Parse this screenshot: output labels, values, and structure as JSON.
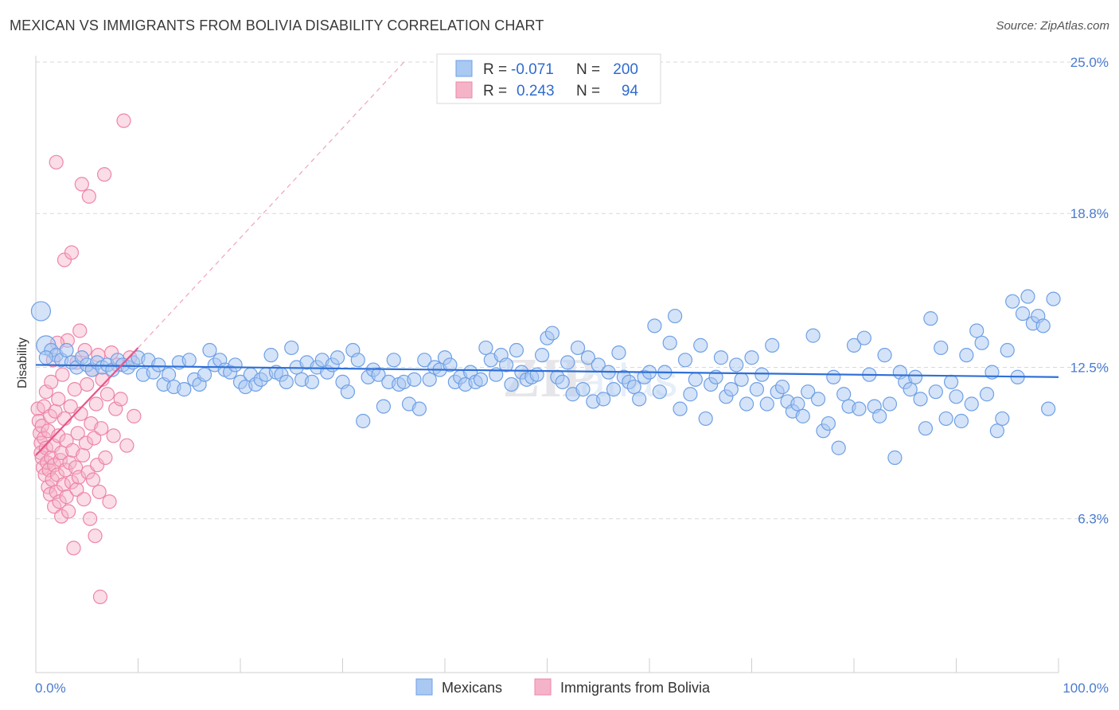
{
  "header": {
    "title": "MEXICAN VS IMMIGRANTS FROM BOLIVIA DISABILITY CORRELATION CHART",
    "source": "Source: ZipAtlas.com"
  },
  "colors": {
    "blue_fill": "#a9c8f2",
    "blue_stroke": "#6fa0e6",
    "blue_line": "#2f6fd6",
    "pink_fill": "#f5b3c8",
    "pink_stroke": "#ee85a8",
    "pink_line": "#e8558a",
    "grid": "#d9d9d9",
    "axis_label": "#4a7bd0"
  },
  "legend": {
    "rows": [
      {
        "r_label": "R =",
        "r_value": "-0.071",
        "n_label": "N =",
        "n_value": "200",
        "series": "blue"
      },
      {
        "r_label": "R =",
        "r_value": "0.243",
        "n_label": "N =",
        "n_value": "94",
        "series": "pink"
      }
    ]
  },
  "chart_data": {
    "type": "scatter",
    "title": "MEXICAN VS IMMIGRANTS FROM BOLIVIA DISABILITY CORRELATION CHART",
    "xlabel": "",
    "ylabel": "Disability",
    "xlim": [
      0,
      100
    ],
    "ylim": [
      0,
      25
    ],
    "y_ticks": [
      6.3,
      12.5,
      18.8,
      25.0
    ],
    "y_tick_labels": [
      "6.3%",
      "12.5%",
      "18.8%",
      "25.0%"
    ],
    "x_tick_labels": [
      "0.0%",
      "100.0%"
    ],
    "grid": true,
    "legend_position": "top-center",
    "bottom_legend": [
      "Mexicans",
      "Immigrants from Bolivia"
    ],
    "series": [
      {
        "name": "Mexicans",
        "color": "blue",
        "r": -0.071,
        "n": 200,
        "trend": {
          "x": [
            0,
            100
          ],
          "y": [
            12.6,
            12.1
          ]
        },
        "points": [
          [
            0.5,
            14.8
          ],
          [
            1.0,
            13.4
          ],
          [
            1.5,
            13.2
          ],
          [
            2.0,
            13.0
          ],
          [
            2.5,
            12.8
          ],
          [
            3.0,
            13.2
          ],
          [
            3.5,
            12.7
          ],
          [
            4.0,
            12.5
          ],
          [
            4.5,
            12.9
          ],
          [
            5.0,
            12.6
          ],
          [
            5.5,
            12.4
          ],
          [
            6.0,
            12.7
          ],
          [
            6.5,
            12.5
          ],
          [
            7.0,
            12.6
          ],
          [
            7.5,
            12.4
          ],
          [
            8.0,
            12.8
          ],
          [
            8.5,
            12.6
          ],
          [
            9.0,
            12.5
          ],
          [
            9.5,
            12.7
          ],
          [
            10.0,
            12.9
          ],
          [
            10.5,
            12.2
          ],
          [
            11.0,
            12.8
          ],
          [
            11.5,
            12.3
          ],
          [
            12.0,
            12.6
          ],
          [
            12.5,
            11.8
          ],
          [
            13.0,
            12.2
          ],
          [
            13.5,
            11.7
          ],
          [
            14.0,
            12.7
          ],
          [
            14.5,
            11.6
          ],
          [
            15.0,
            12.8
          ],
          [
            15.5,
            12.0
          ],
          [
            16.0,
            11.8
          ],
          [
            16.5,
            12.2
          ],
          [
            17.0,
            13.2
          ],
          [
            17.5,
            12.6
          ],
          [
            18.0,
            12.8
          ],
          [
            18.5,
            12.4
          ],
          [
            19.0,
            12.3
          ],
          [
            19.5,
            12.6
          ],
          [
            20.0,
            11.9
          ],
          [
            20.5,
            11.7
          ],
          [
            21.0,
            12.2
          ],
          [
            21.5,
            11.8
          ],
          [
            22.0,
            12.0
          ],
          [
            22.5,
            12.2
          ],
          [
            23.0,
            13.0
          ],
          [
            23.5,
            12.3
          ],
          [
            24.0,
            12.2
          ],
          [
            24.5,
            11.9
          ],
          [
            25.0,
            13.3
          ],
          [
            25.5,
            12.5
          ],
          [
            26.0,
            12.0
          ],
          [
            26.5,
            12.7
          ],
          [
            27.0,
            11.9
          ],
          [
            27.5,
            12.5
          ],
          [
            28.0,
            12.8
          ],
          [
            28.5,
            12.3
          ],
          [
            29.0,
            12.6
          ],
          [
            29.5,
            12.9
          ],
          [
            30.0,
            11.9
          ],
          [
            30.5,
            11.5
          ],
          [
            31.0,
            13.2
          ],
          [
            31.5,
            12.8
          ],
          [
            32.0,
            10.3
          ],
          [
            32.5,
            12.1
          ],
          [
            33.0,
            12.4
          ],
          [
            33.5,
            12.2
          ],
          [
            34.0,
            10.9
          ],
          [
            34.5,
            11.9
          ],
          [
            35.0,
            12.8
          ],
          [
            35.5,
            11.8
          ],
          [
            36.0,
            11.9
          ],
          [
            36.5,
            11.0
          ],
          [
            37.0,
            12.0
          ],
          [
            37.5,
            10.8
          ],
          [
            38.0,
            12.8
          ],
          [
            38.5,
            12.0
          ],
          [
            39.0,
            12.5
          ],
          [
            39.5,
            12.4
          ],
          [
            40.0,
            12.9
          ],
          [
            40.5,
            12.6
          ],
          [
            41.0,
            11.9
          ],
          [
            41.5,
            12.1
          ],
          [
            42.0,
            11.8
          ],
          [
            42.5,
            12.3
          ],
          [
            43.0,
            11.9
          ],
          [
            43.5,
            12.0
          ],
          [
            44.0,
            13.3
          ],
          [
            44.5,
            12.8
          ],
          [
            45.0,
            12.2
          ],
          [
            45.5,
            13.0
          ],
          [
            46.0,
            12.6
          ],
          [
            46.5,
            11.8
          ],
          [
            47.0,
            13.2
          ],
          [
            47.5,
            12.3
          ],
          [
            48.0,
            12.0
          ],
          [
            48.5,
            12.1
          ],
          [
            49.0,
            12.2
          ],
          [
            49.5,
            13.0
          ],
          [
            50.0,
            13.7
          ],
          [
            50.5,
            13.9
          ],
          [
            51.0,
            12.1
          ],
          [
            51.5,
            11.9
          ],
          [
            52.0,
            12.7
          ],
          [
            52.5,
            11.4
          ],
          [
            53.0,
            13.3
          ],
          [
            53.5,
            11.6
          ],
          [
            54.0,
            12.9
          ],
          [
            54.5,
            11.1
          ],
          [
            55.0,
            12.6
          ],
          [
            55.5,
            11.2
          ],
          [
            56.0,
            12.3
          ],
          [
            56.5,
            11.6
          ],
          [
            57.0,
            13.1
          ],
          [
            57.5,
            12.1
          ],
          [
            58.0,
            11.9
          ],
          [
            58.5,
            11.7
          ],
          [
            59.0,
            11.2
          ],
          [
            59.5,
            12.1
          ],
          [
            60.0,
            12.3
          ],
          [
            60.5,
            14.2
          ],
          [
            61.0,
            11.5
          ],
          [
            61.5,
            12.3
          ],
          [
            62.0,
            13.5
          ],
          [
            62.5,
            14.6
          ],
          [
            63.0,
            10.8
          ],
          [
            63.5,
            12.8
          ],
          [
            64.0,
            11.4
          ],
          [
            64.5,
            12.0
          ],
          [
            65.0,
            13.4
          ],
          [
            65.5,
            10.4
          ],
          [
            66.0,
            11.8
          ],
          [
            66.5,
            12.1
          ],
          [
            67.0,
            12.9
          ],
          [
            67.5,
            11.3
          ],
          [
            68.0,
            11.6
          ],
          [
            68.5,
            12.6
          ],
          [
            69.0,
            12.0
          ],
          [
            69.5,
            11.0
          ],
          [
            70.0,
            12.9
          ],
          [
            70.5,
            11.6
          ],
          [
            71.0,
            12.2
          ],
          [
            71.5,
            11.0
          ],
          [
            72.0,
            13.4
          ],
          [
            72.5,
            11.5
          ],
          [
            73.0,
            11.7
          ],
          [
            73.5,
            11.1
          ],
          [
            74.0,
            10.7
          ],
          [
            74.5,
            11.0
          ],
          [
            75.0,
            10.5
          ],
          [
            75.5,
            11.5
          ],
          [
            76.0,
            13.8
          ],
          [
            76.5,
            11.2
          ],
          [
            77.0,
            9.9
          ],
          [
            77.5,
            10.2
          ],
          [
            78.0,
            12.1
          ],
          [
            78.5,
            9.2
          ],
          [
            79.0,
            11.4
          ],
          [
            79.5,
            10.9
          ],
          [
            80.0,
            13.4
          ],
          [
            80.5,
            10.8
          ],
          [
            81.0,
            13.7
          ],
          [
            81.5,
            12.2
          ],
          [
            82.0,
            10.9
          ],
          [
            82.5,
            10.5
          ],
          [
            83.0,
            13.0
          ],
          [
            83.5,
            11.0
          ],
          [
            84.0,
            8.8
          ],
          [
            84.5,
            12.3
          ],
          [
            85.0,
            11.9
          ],
          [
            85.5,
            11.6
          ],
          [
            86.0,
            12.1
          ],
          [
            86.5,
            11.2
          ],
          [
            87.0,
            10.0
          ],
          [
            87.5,
            14.5
          ],
          [
            88.0,
            11.5
          ],
          [
            88.5,
            13.3
          ],
          [
            89.0,
            10.4
          ],
          [
            89.5,
            11.9
          ],
          [
            90.0,
            11.3
          ],
          [
            90.5,
            10.3
          ],
          [
            91.0,
            13.0
          ],
          [
            91.5,
            11.0
          ],
          [
            92.0,
            14.0
          ],
          [
            92.5,
            13.5
          ],
          [
            93.0,
            11.4
          ],
          [
            93.5,
            12.3
          ],
          [
            94.0,
            9.9
          ],
          [
            94.5,
            10.4
          ],
          [
            95.0,
            13.2
          ],
          [
            95.5,
            15.2
          ],
          [
            96.0,
            12.1
          ],
          [
            96.5,
            14.7
          ],
          [
            97.0,
            15.4
          ],
          [
            97.5,
            14.3
          ],
          [
            98.0,
            14.6
          ],
          [
            98.5,
            14.2
          ],
          [
            99.0,
            10.8
          ],
          [
            99.5,
            15.3
          ],
          [
            1.0,
            12.9
          ]
        ]
      },
      {
        "name": "Immigrants from Bolivia",
        "color": "pink",
        "r": 0.243,
        "n": 94,
        "trend": {
          "x": [
            0,
            10
          ],
          "y": [
            8.9,
            13.3
          ]
        },
        "trend_extended": {
          "x": [
            10,
            36
          ],
          "y": [
            13.3,
            25.0
          ]
        },
        "points": [
          [
            0.2,
            10.8
          ],
          [
            0.3,
            10.3
          ],
          [
            0.4,
            9.8
          ],
          [
            0.5,
            9.4
          ],
          [
            0.5,
            9.0
          ],
          [
            0.6,
            8.8
          ],
          [
            0.6,
            10.1
          ],
          [
            0.7,
            8.4
          ],
          [
            0.8,
            9.6
          ],
          [
            0.8,
            10.9
          ],
          [
            0.9,
            8.1
          ],
          [
            1.0,
            9.2
          ],
          [
            1.0,
            11.5
          ],
          [
            1.1,
            8.6
          ],
          [
            1.2,
            7.6
          ],
          [
            1.2,
            9.9
          ],
          [
            1.3,
            8.3
          ],
          [
            1.4,
            7.3
          ],
          [
            1.4,
            10.5
          ],
          [
            1.5,
            8.8
          ],
          [
            1.5,
            11.9
          ],
          [
            1.6,
            7.9
          ],
          [
            1.7,
            9.3
          ],
          [
            1.8,
            6.8
          ],
          [
            1.8,
            8.5
          ],
          [
            1.9,
            10.7
          ],
          [
            2.0,
            7.4
          ],
          [
            2.0,
            20.9
          ],
          [
            2.1,
            8.1
          ],
          [
            2.2,
            9.7
          ],
          [
            2.2,
            11.2
          ],
          [
            2.3,
            7.0
          ],
          [
            2.4,
            8.7
          ],
          [
            2.5,
            6.4
          ],
          [
            2.5,
            9.0
          ],
          [
            2.6,
            12.2
          ],
          [
            2.7,
            7.7
          ],
          [
            2.8,
            10.4
          ],
          [
            2.8,
            16.9
          ],
          [
            2.9,
            8.3
          ],
          [
            3.0,
            7.2
          ],
          [
            3.0,
            9.5
          ],
          [
            3.1,
            13.6
          ],
          [
            3.2,
            6.6
          ],
          [
            3.3,
            8.6
          ],
          [
            3.4,
            10.9
          ],
          [
            3.5,
            7.8
          ],
          [
            3.5,
            17.2
          ],
          [
            3.6,
            9.1
          ],
          [
            3.7,
            5.1
          ],
          [
            3.8,
            11.6
          ],
          [
            3.9,
            8.4
          ],
          [
            4.0,
            12.7
          ],
          [
            4.0,
            7.5
          ],
          [
            4.1,
            9.8
          ],
          [
            4.2,
            8.0
          ],
          [
            4.3,
            14.0
          ],
          [
            4.4,
            10.6
          ],
          [
            4.5,
            20.0
          ],
          [
            4.6,
            8.9
          ],
          [
            4.7,
            7.1
          ],
          [
            4.8,
            13.2
          ],
          [
            4.9,
            9.4
          ],
          [
            5.0,
            11.8
          ],
          [
            5.1,
            8.2
          ],
          [
            5.2,
            19.5
          ],
          [
            5.3,
            6.3
          ],
          [
            5.4,
            10.2
          ],
          [
            5.5,
            12.4
          ],
          [
            5.6,
            7.9
          ],
          [
            5.7,
            9.6
          ],
          [
            5.8,
            5.6
          ],
          [
            5.9,
            11.0
          ],
          [
            6.0,
            8.5
          ],
          [
            6.1,
            13.0
          ],
          [
            6.2,
            7.4
          ],
          [
            6.3,
            3.1
          ],
          [
            6.4,
            10.0
          ],
          [
            6.5,
            12.0
          ],
          [
            6.7,
            20.4
          ],
          [
            6.8,
            8.8
          ],
          [
            7.0,
            11.4
          ],
          [
            7.2,
            7.0
          ],
          [
            7.4,
            13.1
          ],
          [
            7.6,
            9.7
          ],
          [
            7.8,
            10.8
          ],
          [
            8.0,
            12.6
          ],
          [
            8.3,
            11.2
          ],
          [
            8.6,
            22.6
          ],
          [
            8.9,
            9.3
          ],
          [
            9.2,
            12.9
          ],
          [
            9.6,
            10.5
          ],
          [
            2.1,
            13.5
          ],
          [
            1.7,
            12.8
          ]
        ]
      }
    ]
  }
}
